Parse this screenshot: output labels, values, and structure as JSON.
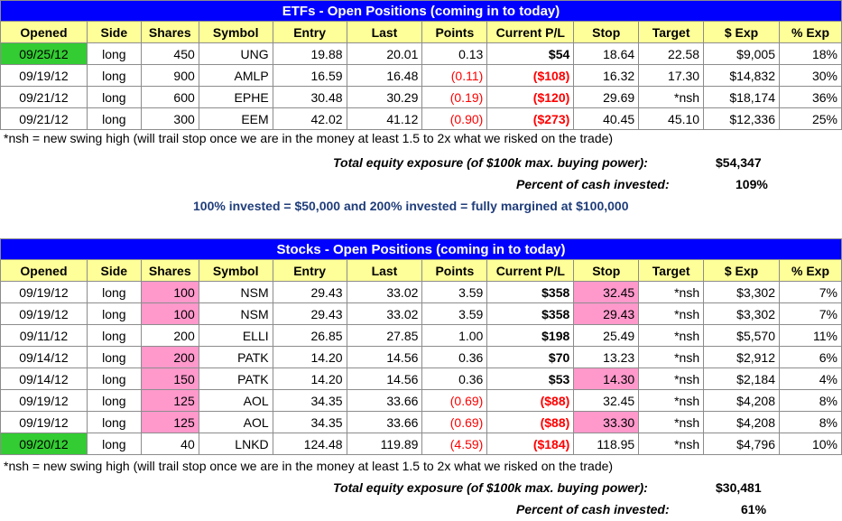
{
  "colors": {
    "header_blue": "#0000ff",
    "header_yellow": "#ffff99",
    "highlight_green": "#33cc33",
    "highlight_pink": "#ff99cc",
    "negative_red": "#ff0000",
    "note_blue": "#1f3d7a"
  },
  "columns": [
    "Opened",
    "Side",
    "Shares",
    "Symbol",
    "Entry",
    "Last",
    "Points",
    "Current P/L",
    "Stop",
    "Target",
    "$ Exp",
    "% Exp"
  ],
  "etfs": {
    "title": "ETFs - Open Positions (coming in to today)",
    "rows": [
      {
        "opened": "09/25/12",
        "side": "long",
        "shares": "450",
        "symbol": "UNG",
        "entry": "19.88",
        "last": "20.01",
        "points": "0.13",
        "pl": "$54",
        "stop": "18.64",
        "target": "22.58",
        "exp": "$9,005",
        "pexp": "18%"
      },
      {
        "opened": "09/19/12",
        "side": "long",
        "shares": "900",
        "symbol": "AMLP",
        "entry": "16.59",
        "last": "16.48",
        "points": "(0.11)",
        "pl": "($108)",
        "stop": "16.32",
        "target": "17.30",
        "exp": "$14,832",
        "pexp": "30%"
      },
      {
        "opened": "09/21/12",
        "side": "long",
        "shares": "600",
        "symbol": "EPHE",
        "entry": "30.48",
        "last": "30.29",
        "points": "(0.19)",
        "pl": "($120)",
        "stop": "29.69",
        "target": "*nsh",
        "exp": "$18,174",
        "pexp": "36%"
      },
      {
        "opened": "09/21/12",
        "side": "long",
        "shares": "300",
        "symbol": "EEM",
        "entry": "42.02",
        "last": "41.12",
        "points": "(0.90)",
        "pl": "($273)",
        "stop": "40.45",
        "target": "45.10",
        "exp": "$12,336",
        "pexp": "25%"
      }
    ],
    "note": "*nsh = new swing high (will trail stop once we are in the money at least 1.5 to 2x what we risked on the trade)",
    "exposure_label": "Total equity exposure (of $100k max. buying power):",
    "exposure_value": "$54,347",
    "cash_label": "Percent of cash invested:",
    "cash_value": "109%",
    "invested_note": "100% invested = $50,000 and 200% invested = fully margined at $100,000"
  },
  "stocks": {
    "title": "Stocks - Open Positions (coming in to today)",
    "rows": [
      {
        "opened": "09/19/12",
        "side": "long",
        "shares": "100",
        "symbol": "NSM",
        "entry": "29.43",
        "last": "33.02",
        "points": "3.59",
        "pl": "$358",
        "stop": "32.45",
        "target": "*nsh",
        "exp": "$3,302",
        "pexp": "7%"
      },
      {
        "opened": "09/19/12",
        "side": "long",
        "shares": "100",
        "symbol": "NSM",
        "entry": "29.43",
        "last": "33.02",
        "points": "3.59",
        "pl": "$358",
        "stop": "29.43",
        "target": "*nsh",
        "exp": "$3,302",
        "pexp": "7%"
      },
      {
        "opened": "09/11/12",
        "side": "long",
        "shares": "200",
        "symbol": "ELLI",
        "entry": "26.85",
        "last": "27.85",
        "points": "1.00",
        "pl": "$198",
        "stop": "25.49",
        "target": "*nsh",
        "exp": "$5,570",
        "pexp": "11%"
      },
      {
        "opened": "09/14/12",
        "side": "long",
        "shares": "200",
        "symbol": "PATK",
        "entry": "14.20",
        "last": "14.56",
        "points": "0.36",
        "pl": "$70",
        "stop": "13.23",
        "target": "*nsh",
        "exp": "$2,912",
        "pexp": "6%"
      },
      {
        "opened": "09/14/12",
        "side": "long",
        "shares": "150",
        "symbol": "PATK",
        "entry": "14.20",
        "last": "14.56",
        "points": "0.36",
        "pl": "$53",
        "stop": "14.30",
        "target": "*nsh",
        "exp": "$2,184",
        "pexp": "4%"
      },
      {
        "opened": "09/19/12",
        "side": "long",
        "shares": "125",
        "symbol": "AOL",
        "entry": "34.35",
        "last": "33.66",
        "points": "(0.69)",
        "pl": "($88)",
        "stop": "32.45",
        "target": "*nsh",
        "exp": "$4,208",
        "pexp": "8%"
      },
      {
        "opened": "09/19/12",
        "side": "long",
        "shares": "125",
        "symbol": "AOL",
        "entry": "34.35",
        "last": "33.66",
        "points": "(0.69)",
        "pl": "($88)",
        "stop": "33.30",
        "target": "*nsh",
        "exp": "$4,208",
        "pexp": "8%"
      },
      {
        "opened": "09/20/12",
        "side": "long",
        "shares": "40",
        "symbol": "LNKD",
        "entry": "124.48",
        "last": "119.89",
        "points": "(4.59)",
        "pl": "($184)",
        "stop": "118.95",
        "target": "*nsh",
        "exp": "$4,796",
        "pexp": "10%"
      }
    ],
    "note": "*nsh = new swing high (will trail stop once we are in the money at least 1.5 to 2x what we risked on the trade)",
    "exposure_label": "Total equity exposure (of $100k max. buying power):",
    "exposure_value": "$30,481",
    "cash_label": "Percent of cash invested:",
    "cash_value": "61%"
  }
}
